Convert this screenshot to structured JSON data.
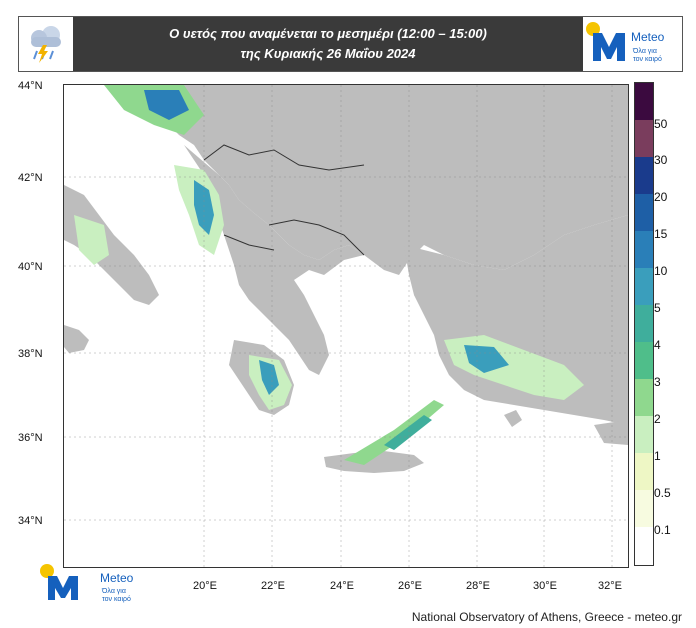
{
  "header": {
    "title_line1": "Ο υετός που αναμένεται το μεσημέρι (12:00 – 15:00)",
    "title_line2": "της Κυριακής 26 Μαΐου 2024"
  },
  "logo": {
    "name": "Meteo",
    "tagline_line1": "Όλα για",
    "tagline_line2": "τον καιρό",
    "brand_color": "#1560bd",
    "sun_color": "#f5c400"
  },
  "map": {
    "land_color": "#bdbdbd",
    "sea_color": "#ffffff",
    "lat_labels": [
      "44°N",
      "42°N",
      "40°N",
      "38°N",
      "36°N",
      "34°N"
    ],
    "lon_labels": [
      "20°E",
      "22°E",
      "24°E",
      "26°E",
      "28°E",
      "30°E",
      "32°E"
    ]
  },
  "colorbar": {
    "labels": [
      "50",
      "30",
      "20",
      "15",
      "10",
      "5",
      "4",
      "3",
      "2",
      "1",
      "0.5",
      "0.1"
    ],
    "colors": [
      "#3b0a3f",
      "#7a3d5d",
      "#1a3b8c",
      "#1e5fa6",
      "#2a7fb8",
      "#3a9ebc",
      "#3fae9c",
      "#4fbe8a",
      "#8fd88e",
      "#c9efc0",
      "#eef7c5",
      "#f7fbe0",
      "#ffffff"
    ]
  },
  "credit": "National Observatory of Athens, Greece - meteo.gr"
}
